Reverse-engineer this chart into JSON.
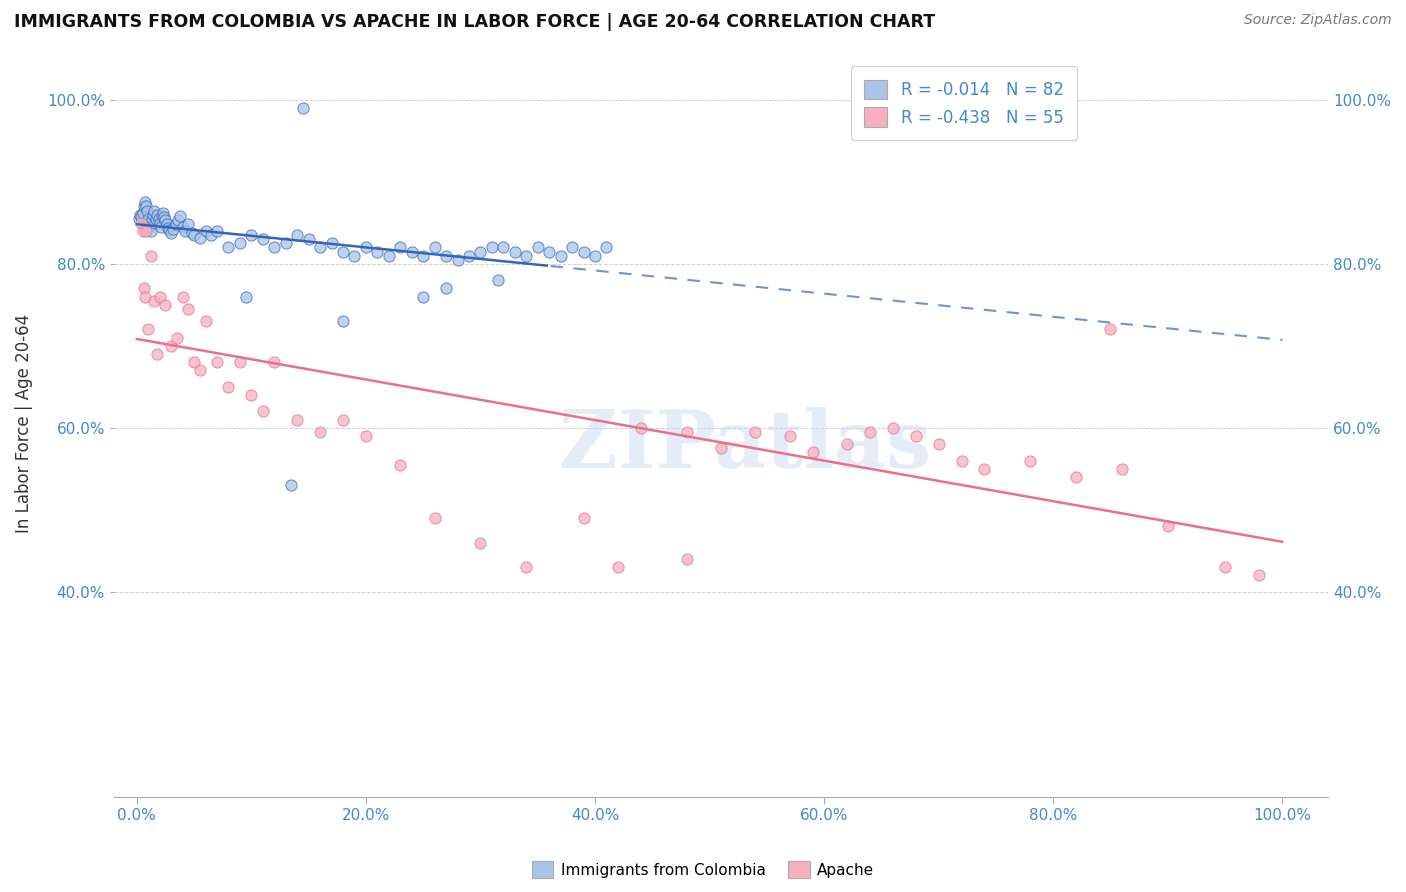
{
  "title": "IMMIGRANTS FROM COLOMBIA VS APACHE IN LABOR FORCE | AGE 20-64 CORRELATION CHART",
  "source": "Source: ZipAtlas.com",
  "ylabel": "In Labor Force | Age 20-64",
  "xlim": [
    -0.02,
    1.04
  ],
  "ylim": [
    0.15,
    1.06
  ],
  "yticks": [
    0.4,
    0.6,
    0.8,
    1.0
  ],
  "xticks": [
    0.0,
    0.2,
    0.4,
    0.6,
    0.8,
    1.0
  ],
  "xtick_labels": [
    "0.0%",
    "20.0%",
    "40.0%",
    "60.0%",
    "80.0%",
    "100.0%"
  ],
  "ytick_labels": [
    "40.0%",
    "60.0%",
    "80.0%",
    "100.0%"
  ],
  "colombia_color": "#aac4e8",
  "apache_color": "#f5afc0",
  "trend_colombia_color": "#3366bb",
  "trend_apache_color": "#e8708a",
  "background_color": "#ffffff",
  "watermark": "ZIPatlas",
  "colombia_x": [
    0.002,
    0.003,
    0.004,
    0.005,
    0.006,
    0.007,
    0.008,
    0.009,
    0.01,
    0.011,
    0.012,
    0.013,
    0.014,
    0.015,
    0.016,
    0.017,
    0.018,
    0.019,
    0.02,
    0.021,
    0.022,
    0.023,
    0.024,
    0.025,
    0.026,
    0.027,
    0.028,
    0.03,
    0.032,
    0.034,
    0.036,
    0.038,
    0.04,
    0.042,
    0.045,
    0.048,
    0.05,
    0.055,
    0.06,
    0.065,
    0.07,
    0.08,
    0.09,
    0.1,
    0.11,
    0.12,
    0.13,
    0.14,
    0.15,
    0.16,
    0.17,
    0.18,
    0.19,
    0.2,
    0.21,
    0.22,
    0.23,
    0.24,
    0.25,
    0.26,
    0.27,
    0.28,
    0.29,
    0.3,
    0.31,
    0.32,
    0.33,
    0.34,
    0.35,
    0.36,
    0.37,
    0.38,
    0.39,
    0.4,
    0.25,
    0.18,
    0.135,
    0.095,
    0.315,
    0.27,
    0.41,
    0.145
  ],
  "colombia_y": [
    0.855,
    0.86,
    0.858,
    0.862,
    0.87,
    0.875,
    0.87,
    0.865,
    0.855,
    0.845,
    0.84,
    0.855,
    0.86,
    0.865,
    0.85,
    0.855,
    0.86,
    0.855,
    0.85,
    0.845,
    0.858,
    0.862,
    0.857,
    0.853,
    0.848,
    0.844,
    0.841,
    0.838,
    0.843,
    0.848,
    0.853,
    0.858,
    0.845,
    0.84,
    0.848,
    0.838,
    0.835,
    0.832,
    0.84,
    0.835,
    0.84,
    0.82,
    0.825,
    0.835,
    0.83,
    0.82,
    0.825,
    0.835,
    0.83,
    0.82,
    0.825,
    0.815,
    0.81,
    0.82,
    0.815,
    0.81,
    0.82,
    0.815,
    0.81,
    0.82,
    0.81,
    0.805,
    0.81,
    0.815,
    0.82,
    0.82,
    0.815,
    0.81,
    0.82,
    0.815,
    0.81,
    0.82,
    0.815,
    0.81,
    0.76,
    0.73,
    0.53,
    0.76,
    0.78,
    0.77,
    0.82,
    0.99
  ],
  "apache_x": [
    0.004,
    0.005,
    0.006,
    0.007,
    0.008,
    0.01,
    0.012,
    0.015,
    0.018,
    0.02,
    0.025,
    0.03,
    0.035,
    0.04,
    0.045,
    0.05,
    0.055,
    0.06,
    0.07,
    0.08,
    0.09,
    0.1,
    0.11,
    0.12,
    0.14,
    0.16,
    0.18,
    0.2,
    0.23,
    0.26,
    0.3,
    0.34,
    0.39,
    0.44,
    0.48,
    0.51,
    0.54,
    0.57,
    0.59,
    0.62,
    0.64,
    0.66,
    0.68,
    0.7,
    0.72,
    0.74,
    0.78,
    0.82,
    0.86,
    0.9,
    0.95,
    0.98,
    0.48,
    0.42,
    0.85
  ],
  "apache_y": [
    0.85,
    0.84,
    0.77,
    0.76,
    0.84,
    0.72,
    0.81,
    0.755,
    0.69,
    0.76,
    0.75,
    0.7,
    0.71,
    0.76,
    0.745,
    0.68,
    0.67,
    0.73,
    0.68,
    0.65,
    0.68,
    0.64,
    0.62,
    0.68,
    0.61,
    0.595,
    0.61,
    0.59,
    0.555,
    0.49,
    0.46,
    0.43,
    0.49,
    0.6,
    0.595,
    0.575,
    0.595,
    0.59,
    0.57,
    0.58,
    0.595,
    0.6,
    0.59,
    0.58,
    0.56,
    0.55,
    0.56,
    0.54,
    0.55,
    0.48,
    0.43,
    0.42,
    0.44,
    0.43,
    0.72
  ]
}
